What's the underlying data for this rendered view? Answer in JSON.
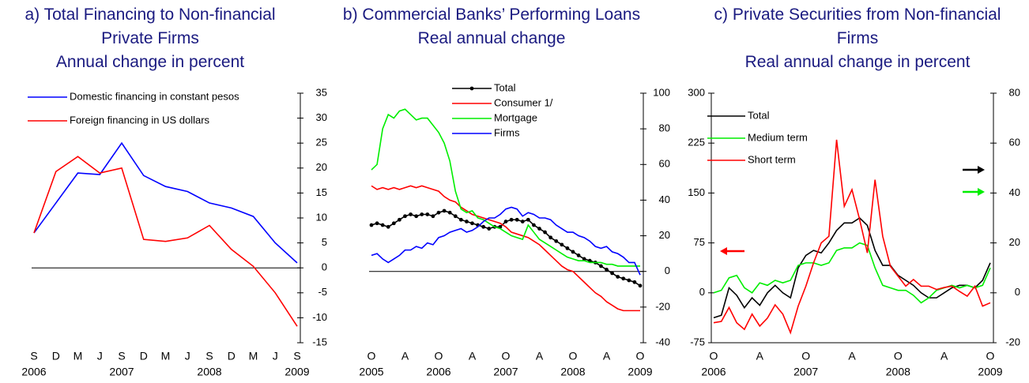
{
  "chart_data": [
    {
      "type": "line",
      "title": "a) Total Financing to Non-financial Private Firms",
      "subtitle": "Annual change in percent",
      "categories": [
        "S",
        "D",
        "M",
        "J",
        "S",
        "D",
        "M",
        "J",
        "S",
        "D",
        "M",
        "J",
        "S"
      ],
      "years": [
        "2006",
        null,
        null,
        null,
        "2007",
        null,
        null,
        null,
        "2008",
        null,
        null,
        null,
        "2009"
      ],
      "series": [
        {
          "name": "Domestic financing in constant pesos",
          "color": "#0000ff",
          "values": [
            7,
            13,
            19,
            18.7,
            25,
            18.5,
            16.3,
            15.3,
            13,
            12,
            10.3,
            5,
            1
          ]
        },
        {
          "name": "Foreign financing in US dollars",
          "color": "#ff0000",
          "values": [
            7,
            19.3,
            22.3,
            19,
            20,
            5.7,
            5.3,
            6,
            8.5,
            3.7,
            0.3,
            -5,
            -11.7
          ]
        }
      ],
      "ylim": [
        -15,
        35
      ],
      "yticks": [
        -15,
        -10,
        -5,
        0,
        5,
        10,
        15,
        20,
        25,
        30,
        35
      ],
      "yaxis_side": "right",
      "xaxis_at_zero": true,
      "legend": "upper left"
    },
    {
      "type": "line",
      "title": "b) Commercial Banks’ Performing Loans",
      "subtitle": "Real annual change",
      "categories": [
        "O",
        null,
        null,
        null,
        null,
        null,
        "A",
        null,
        null,
        null,
        null,
        null,
        "O",
        null,
        null,
        null,
        null,
        null,
        "A",
        null,
        null,
        null,
        null,
        null,
        "O",
        null,
        null,
        null,
        null,
        null,
        "A",
        null,
        null,
        null,
        null,
        null,
        "O",
        null,
        null,
        null,
        null,
        null,
        "A",
        null,
        null,
        null,
        null,
        null,
        "O"
      ],
      "years": [
        "2005",
        null,
        null,
        null,
        null,
        null,
        null,
        null,
        null,
        null,
        null,
        null,
        "2006",
        null,
        null,
        null,
        null,
        null,
        null,
        null,
        null,
        null,
        null,
        null,
        "2007",
        null,
        null,
        null,
        null,
        null,
        null,
        null,
        null,
        null,
        null,
        null,
        "2008",
        null,
        null,
        null,
        null,
        null,
        null,
        null,
        null,
        null,
        null,
        null,
        "2009"
      ],
      "series": [
        {
          "name": "Total",
          "color": "#000000",
          "marker": "circle",
          "values": [
            26,
            27,
            26,
            25,
            27,
            29,
            31,
            32,
            31,
            32,
            32,
            31,
            33,
            34,
            33,
            31,
            29,
            28,
            27,
            26,
            25,
            24,
            25,
            25,
            28,
            29,
            29,
            28,
            29,
            26,
            24,
            22,
            19,
            17,
            15,
            13,
            11,
            9,
            7,
            6,
            5,
            3,
            1,
            -1,
            -3,
            -4,
            -5,
            -6,
            -8
          ]
        },
        {
          "name": "Consumer 1/",
          "color": "#ff0000",
          "values": [
            48,
            46,
            47,
            46,
            47,
            46,
            47,
            48,
            47,
            48,
            47,
            46,
            45,
            42,
            40,
            39,
            36,
            34,
            32,
            31,
            30,
            29,
            28,
            27,
            25,
            22,
            21,
            20,
            19,
            17,
            15,
            12,
            9,
            6,
            3,
            1,
            0,
            -3,
            -6,
            -9,
            -12,
            -14,
            -17,
            -19,
            -21,
            -22,
            -22,
            -22,
            -22
          ]
        },
        {
          "name": "Mortgage",
          "color": "#00ee00",
          "values": [
            57,
            60,
            80,
            88,
            86,
            90,
            91,
            88,
            85,
            86,
            86,
            82,
            78,
            72,
            62,
            45,
            35,
            33,
            34,
            30,
            29,
            27,
            25,
            24,
            22,
            20,
            19,
            18,
            26,
            22,
            18,
            16,
            14,
            12,
            10,
            8,
            7,
            6,
            6,
            5,
            5,
            5,
            4,
            4,
            3,
            3,
            3,
            3,
            3
          ]
        },
        {
          "name": "Firms",
          "color": "#0000ff",
          "values": [
            9,
            10,
            7,
            5,
            7,
            9,
            12,
            12,
            14,
            13,
            16,
            15,
            19,
            20,
            22,
            23,
            24,
            22,
            23,
            25,
            28,
            30,
            30,
            32,
            35,
            36,
            35,
            31,
            33,
            32,
            30,
            30,
            29,
            26,
            24,
            22,
            22,
            20,
            19,
            17,
            14,
            13,
            14,
            11,
            10,
            8,
            5,
            5,
            -2
          ]
        }
      ],
      "ylim": [
        -40,
        100
      ],
      "yticks": [
        -40,
        -20,
        0,
        20,
        40,
        60,
        80,
        100
      ],
      "yaxis_side": "right",
      "xaxis_at_zero": true,
      "legend": "upper right"
    },
    {
      "type": "line",
      "title": "c) Private Securities from Non-financial Firms",
      "subtitle": "Real annual change in percent",
      "categories": [
        "O",
        null,
        null,
        null,
        null,
        null,
        "A",
        null,
        null,
        null,
        null,
        null,
        "O",
        null,
        null,
        null,
        null,
        null,
        "A",
        null,
        null,
        null,
        null,
        null,
        "O",
        null,
        null,
        null,
        null,
        null,
        "A",
        null,
        null,
        null,
        null,
        null,
        "O"
      ],
      "years": [
        "2006",
        null,
        null,
        null,
        null,
        null,
        null,
        null,
        null,
        null,
        null,
        null,
        "2007",
        null,
        null,
        null,
        null,
        null,
        null,
        null,
        null,
        null,
        null,
        null,
        "2008",
        null,
        null,
        null,
        null,
        null,
        null,
        null,
        null,
        null,
        null,
        null,
        "2009"
      ],
      "series": [
        {
          "name": "Total",
          "color": "#000000",
          "axis": "y2",
          "values": [
            -10,
            -9,
            2,
            -1,
            -6,
            -2,
            -5,
            0,
            3,
            0,
            -2,
            10,
            15,
            17,
            16,
            20,
            25,
            28,
            28,
            30,
            27,
            17,
            11,
            11,
            7,
            5,
            3,
            0,
            -2,
            -2,
            0,
            2,
            3,
            3,
            2,
            5,
            12
          ]
        },
        {
          "name": "Medium term",
          "color": "#00ee00",
          "axis": "y2",
          "values": [
            0,
            1,
            6,
            7,
            2,
            0,
            4,
            3,
            5,
            4,
            5,
            11,
            12,
            12,
            11,
            12,
            17,
            18,
            18,
            20,
            19,
            10,
            3,
            2,
            1,
            1,
            -1,
            -4,
            -2,
            1,
            2,
            3,
            2,
            3,
            2,
            3,
            10
          ]
        },
        {
          "name": "Short term",
          "color": "#ff0000",
          "axis": "y",
          "values": [
            -45,
            -43,
            -22,
            -45,
            -55,
            -32,
            -50,
            -38,
            -18,
            -32,
            -60,
            -20,
            10,
            45,
            75,
            85,
            230,
            130,
            155,
            110,
            60,
            170,
            85,
            40,
            25,
            10,
            20,
            10,
            10,
            5,
            8,
            10,
            2,
            -5,
            10,
            -20,
            -15
          ]
        }
      ],
      "ylim": [
        -75,
        300
      ],
      "yticks": [
        -75,
        0,
        75,
        150,
        225,
        300
      ],
      "y2lim": [
        -20,
        80
      ],
      "y2ticks": [
        -20,
        0,
        20,
        40,
        60,
        80
      ],
      "yaxis_side": "left",
      "xaxis_at_zero": false,
      "legend": "upper left"
    }
  ]
}
